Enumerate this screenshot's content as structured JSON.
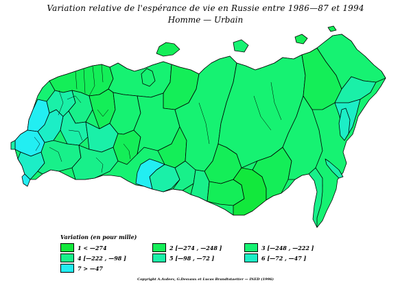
{
  "title": "Variation relative de l'espérance de vie en Russie entre 1986—87 et 1994",
  "subtitle": "Homme — Urbain",
  "legend": {
    "title": "Variation (en pour mille)",
    "classes": [
      {
        "id": "c1",
        "label": "1 <  —274",
        "color": "#12e83c"
      },
      {
        "id": "c2",
        "label": "2 [—274 , —248 ]",
        "color": "#14ee58"
      },
      {
        "id": "c3",
        "label": "3 [—248 , —222 ]",
        "color": "#16f272"
      },
      {
        "id": "c4",
        "label": "4 [—222 , —98 ]",
        "color": "#18f08a"
      },
      {
        "id": "c5",
        "label": "5 [—98 , —72 ]",
        "color": "#1af0a8"
      },
      {
        "id": "c6",
        "label": "6 [—72 , —47 ]",
        "color": "#1ceec6"
      },
      {
        "id": "c7",
        "label": "7 >  —47",
        "color": "#22eef2"
      }
    ]
  },
  "copyright": "Copyright A.Avdeev, G.Desvaux et Lucas Brandtstaetter — INED (1996)"
}
